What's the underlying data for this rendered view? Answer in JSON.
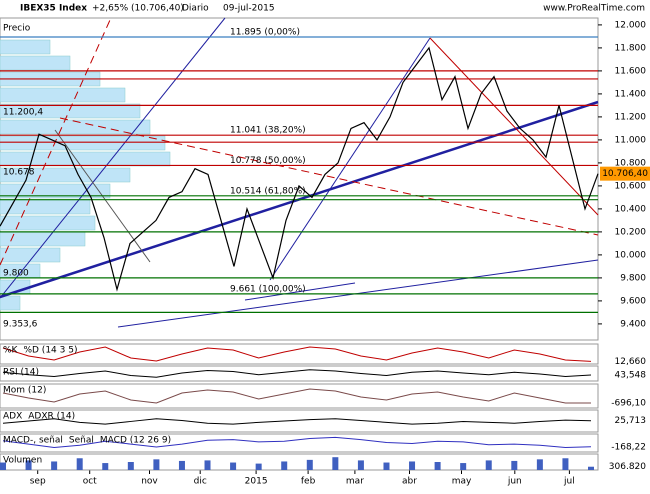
{
  "header": {
    "symbol": "IBEX35 Index",
    "change": "+2,65% (10.706,40)",
    "period": "Diario",
    "date": "09-jul-2015",
    "site": "www.ProRealTime.com"
  },
  "chart_data": {
    "type": "line",
    "price_label": "Precio",
    "x": [
      0,
      1,
      2,
      3,
      4,
      5,
      6,
      7,
      8,
      9,
      10,
      11,
      12,
      13,
      14,
      15,
      16,
      17,
      18,
      19,
      20,
      21,
      22,
      23,
      24,
      25,
      26,
      27,
      28,
      29,
      30,
      31,
      32,
      33,
      34,
      35,
      36,
      37,
      38,
      39,
      40,
      41,
      42,
      43,
      44,
      45,
      46
    ],
    "series": [
      {
        "name": "IBEX35",
        "color": "#000000",
        "values": [
          10250,
          10450,
          10650,
          11050,
          11000,
          10950,
          10700,
          10500,
          10150,
          9700,
          10100,
          10200,
          10300,
          10500,
          10550,
          10750,
          10700,
          10300,
          9900,
          10400,
          10100,
          9800,
          10300,
          10600,
          10500,
          10700,
          10800,
          11100,
          11150,
          11000,
          11200,
          11500,
          11650,
          11800,
          11350,
          11550,
          11100,
          11400,
          11550,
          11250,
          11100,
          11000,
          10850,
          11300,
          10850,
          10400,
          10706.4
        ]
      }
    ],
    "xlim": [
      0,
      46
    ],
    "xticks": [
      {
        "value": 2.9,
        "label": "sep"
      },
      {
        "value": 6.9,
        "label": "oct"
      },
      {
        "value": 11.5,
        "label": "nov"
      },
      {
        "value": 15.4,
        "label": "dic"
      },
      {
        "value": 19.7,
        "label": "2015"
      },
      {
        "value": 23.7,
        "label": "feb"
      },
      {
        "value": 27.3,
        "label": "mar"
      },
      {
        "value": 31.5,
        "label": "abr"
      },
      {
        "value": 35.5,
        "label": "may"
      },
      {
        "value": 39.6,
        "label": "jun"
      },
      {
        "value": 43.8,
        "label": "jul"
      }
    ],
    "ylim": [
      9260,
      12060
    ],
    "yticks": [
      {
        "value": 9400,
        "label": "9.400"
      },
      {
        "value": 9600,
        "label": "9.600"
      },
      {
        "value": 9800,
        "label": "9.800"
      },
      {
        "value": 10000,
        "label": "10.000"
      },
      {
        "value": 10200,
        "label": "10.200"
      },
      {
        "value": 10400,
        "label": "10.400"
      },
      {
        "value": 10600,
        "label": "10.600"
      },
      {
        "value": 10800,
        "label": "10.800"
      },
      {
        "value": 11000,
        "label": "11.000"
      },
      {
        "value": 11200,
        "label": "11.200"
      },
      {
        "value": 11400,
        "label": "11.400"
      },
      {
        "value": 11600,
        "label": "11.600"
      },
      {
        "value": 11800,
        "label": "11.800"
      },
      {
        "value": 12000,
        "label": "12.000"
      }
    ],
    "last": {
      "value": 10706.4,
      "label": "10.706,40",
      "color": "#ff9900"
    },
    "levels": [
      {
        "value": 11895,
        "label": "11.895 (0,00%)",
        "color": "#3a7fc0"
      },
      {
        "value": 11600,
        "color": "#c00000"
      },
      {
        "value": 11530,
        "color": "#c00000"
      },
      {
        "value": 11300,
        "color": "#c00000"
      },
      {
        "value": 11041,
        "label": "11.041 (38,20%)",
        "color": "#c00000"
      },
      {
        "value": 10980,
        "color": "#c00000"
      },
      {
        "value": 10778,
        "label": "10.778 (50,00%)",
        "color": "#c00000"
      },
      {
        "value": 10514,
        "label": "10.514 (61,80%)",
        "color": "#007000"
      },
      {
        "value": 10480,
        "color": "#007000"
      },
      {
        "value": 10200,
        "color": "#007000"
      },
      {
        "value": 9800,
        "color": "#007000"
      },
      {
        "value": 9661,
        "label": "9.661 (100,00%)",
        "color": "#007000"
      },
      {
        "value": 9500,
        "color": "#007000"
      }
    ],
    "side_labels": [
      {
        "value": 11200.4,
        "label": "11.200,4"
      },
      {
        "value": 10678,
        "label": "10.678"
      },
      {
        "value": 9800,
        "label": "9.800"
      },
      {
        "value": 9353.6,
        "label": "9.353,6"
      }
    ],
    "panels": [
      {
        "names": [
          "%K",
          "%D (14 3 5)"
        ],
        "color": "#c00000",
        "ylim": [
          0,
          100
        ],
        "values": [
          80,
          40,
          20,
          60,
          85,
          30,
          15,
          50,
          80,
          70,
          30,
          60,
          85,
          75,
          40,
          20,
          55,
          80,
          60,
          30,
          70,
          50,
          20,
          13
        ],
        "last": 12.66,
        "last_label": "12,660"
      },
      {
        "names": [
          "RSI (14)"
        ],
        "color": "#000000",
        "ylim": [
          20,
          80
        ],
        "values": [
          55,
          45,
          38,
          50,
          60,
          42,
          35,
          52,
          62,
          58,
          45,
          55,
          65,
          60,
          50,
          42,
          55,
          60,
          52,
          45,
          55,
          48,
          38,
          44
        ],
        "last": 43.548,
        "last_label": "43,548"
      },
      {
        "names": [
          "Mom (12)"
        ],
        "color": "#7a4a4a",
        "ylim": [
          -1200,
          1200
        ],
        "values": [
          300,
          -200,
          -600,
          200,
          500,
          -400,
          -700,
          300,
          600,
          400,
          -300,
          200,
          700,
          500,
          -100,
          -400,
          200,
          400,
          -100,
          -500,
          300,
          -200,
          -700,
          -696
        ],
        "last": -696.1,
        "last_label": "-696,10"
      },
      {
        "names": [
          "ADX",
          "ADXR (14)"
        ],
        "color": "#000000",
        "ylim": [
          0,
          50
        ],
        "values": [
          20,
          25,
          30,
          22,
          18,
          24,
          30,
          26,
          20,
          18,
          22,
          25,
          28,
          30,
          26,
          22,
          18,
          20,
          24,
          22,
          20,
          24,
          27,
          25.7
        ],
        "last": 25.713,
        "last_label": "25,713"
      },
      {
        "names": [
          "MACD-, señal",
          "Señal",
          "MACD (12 26 9)"
        ],
        "color": "#3030c0",
        "ylim": [
          -400,
          400
        ],
        "values": [
          100,
          -50,
          -200,
          -100,
          80,
          -50,
          -180,
          -50,
          120,
          150,
          50,
          80,
          200,
          250,
          150,
          20,
          -20,
          80,
          50,
          -80,
          -50,
          -100,
          -200,
          -168
        ],
        "last": -168.22,
        "last_label": "-168,22"
      },
      {
        "names": [
          "Volumen"
        ],
        "color": "#4060c0",
        "ylim": [
          0,
          1500000
        ],
        "bars": true,
        "values": [
          700000,
          900000,
          800000,
          1100000,
          650000,
          750000,
          1000000,
          850000,
          900000,
          700000,
          600000,
          800000,
          950000,
          1200000,
          900000,
          700000,
          800000,
          750000,
          650000,
          900000,
          850000,
          1000000,
          1100000,
          306820
        ],
        "last": 306820,
        "last_label": "306.820"
      }
    ]
  }
}
